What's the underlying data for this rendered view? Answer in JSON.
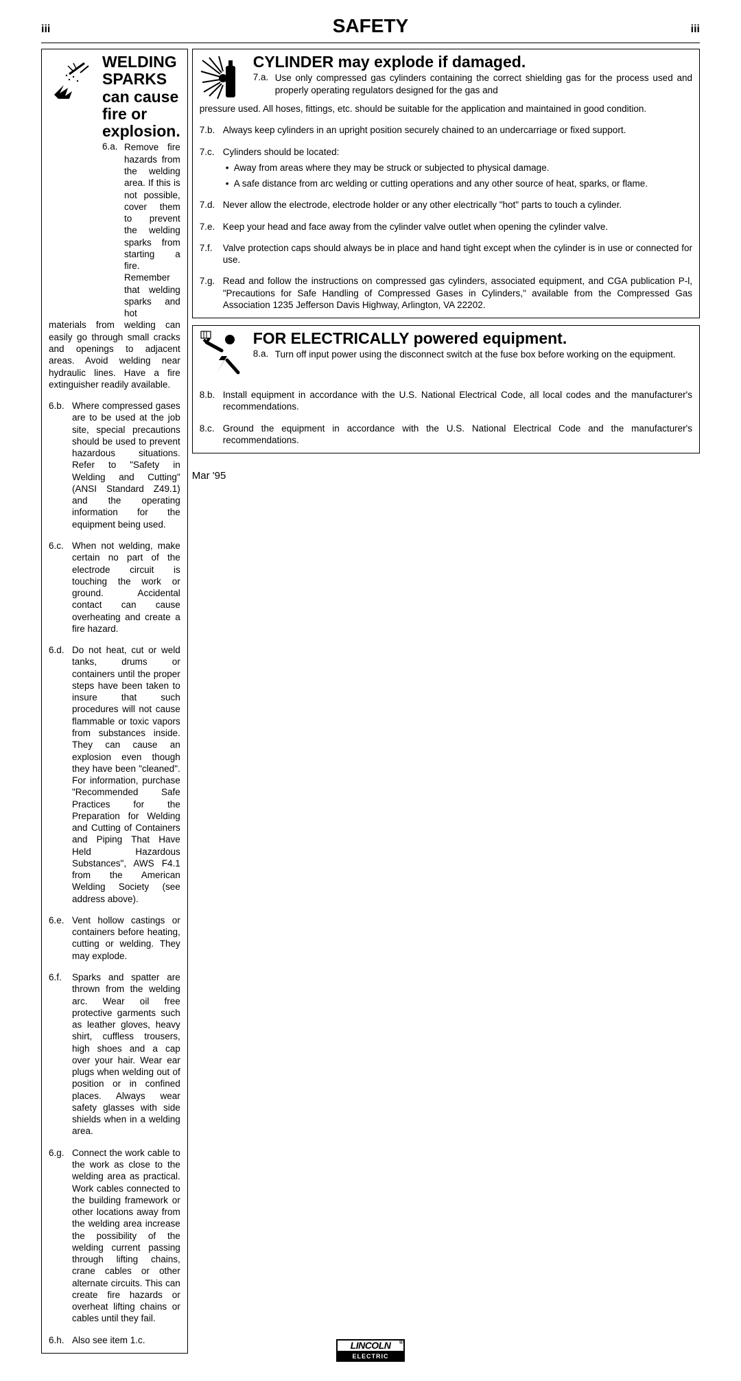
{
  "page_tag_left": "iii",
  "page_tag_right": "iii",
  "page_title": "SAFETY",
  "date": "Mar '95",
  "logo": {
    "top": "LINCOLN",
    "bottom": "ELECTRIC",
    "reg": "®"
  },
  "left": {
    "title": "WELDING SPARKS can cause fire or explosion.",
    "intro_num": "6.a.",
    "intro_text_first": "Remove fire hazards from the welding area. If this is not possible, cover them to prevent the welding sparks from starting a fire. Remember that welding sparks and hot",
    "intro_text_wrap": "materials from welding can easily go through small cracks and openings to adjacent areas. Avoid welding near hydraulic lines. Have a fire extinguisher readily available.",
    "items": [
      {
        "num": "6.b.",
        "text": "Where compressed gases are to be used at the job site, special precautions should be used to prevent hazardous situations. Refer to \"Safety in Welding and Cutting\" (ANSI Standard Z49.1) and the operating information for the equipment being used."
      },
      {
        "num": "6.c.",
        "text": "When not welding, make certain no part of the electrode circuit is touching the work or ground. Accidental contact can cause overheating and create a fire hazard."
      },
      {
        "num": "6.d.",
        "text": "Do not heat, cut or weld tanks, drums or containers until the proper steps have been taken to insure that such procedures will not cause flammable or toxic vapors from substances inside. They can cause an explosion even though they have been \"cleaned\". For information, purchase \"Recommended Safe Practices for the Preparation for Welding and Cutting of Containers and Piping That Have Held Hazardous Substances\", AWS F4.1 from the American Welding Society (see address above)."
      },
      {
        "num": "6.e.",
        "text": "Vent hollow castings or containers before heating, cutting or welding. They may explode."
      },
      {
        "num": "6.f.",
        "text": "Sparks and spatter are thrown from the welding arc. Wear oil free protective garments such as leather gloves, heavy shirt, cuffless trousers, high shoes and a cap over your hair. Wear ear plugs when welding out of position or in confined places. Always wear safety glasses with side shields when in a welding area."
      },
      {
        "num": "6.g.",
        "text": "Connect the work cable to the work as close to the welding area as practical. Work cables connected to the building framework or other locations away from the welding area increase the possibility of the welding current passing through lifting chains, crane cables or other alternate circuits. This can create fire hazards or overheat lifting chains or cables until they fail."
      },
      {
        "num": "6.h.",
        "text": "Also see item 1.c."
      }
    ]
  },
  "right_top": {
    "title": "CYLINDER may explode if damaged.",
    "intro_num": "7.a.",
    "intro_text_first": "Use only compressed gas cylinders containing the correct shielding gas for the process used and properly operating regulators designed for the gas and",
    "intro_text_wrap": "pressure used. All hoses, fittings, etc. should be suitable for the application and maintained in good condition.",
    "items": [
      {
        "num": "7.b.",
        "text": "Always keep cylinders in an upright position securely chained to an undercarriage or fixed support."
      },
      {
        "num": "7.c.",
        "text": "Cylinders should be located:",
        "subs": [
          "Away from areas where they may be struck or subjected to physical damage.",
          "A safe distance from arc welding or cutting operations and any other source of heat, sparks, or flame."
        ]
      },
      {
        "num": "7.d.",
        "text": "Never allow the electrode, electrode holder or any other electrically \"hot\" parts to touch a cylinder."
      },
      {
        "num": "7.e.",
        "text": "Keep your head and face away from the cylinder valve outlet when opening the cylinder valve."
      },
      {
        "num": "7.f.",
        "text": "Valve protection caps should always be in place and hand tight except when the cylinder is in use or connected for use."
      },
      {
        "num": "7.g.",
        "text": "Read and follow the instructions on compressed gas cylinders, associated equipment, and CGA publication P-l, \"Precautions for Safe Handling of Compressed Gases in Cylinders,\" available from the Compressed Gas Association 1235 Jefferson Davis Highway, Arlington, VA 22202."
      }
    ]
  },
  "right_bottom": {
    "title": "FOR ELECTRICALLY powered equipment.",
    "intro_num": "8.a.",
    "intro_text_first": "Turn off input power using the disconnect switch at the fuse box before working on the equipment.",
    "items": [
      {
        "num": "8.b.",
        "text": "Install equipment in accordance with the U.S. National Electrical Code, all local codes and the manufacturer's recommendations."
      },
      {
        "num": "8.c.",
        "text": "Ground the equipment in accordance with the U.S. National Electrical Code and the manufacturer's recommendations."
      }
    ]
  }
}
